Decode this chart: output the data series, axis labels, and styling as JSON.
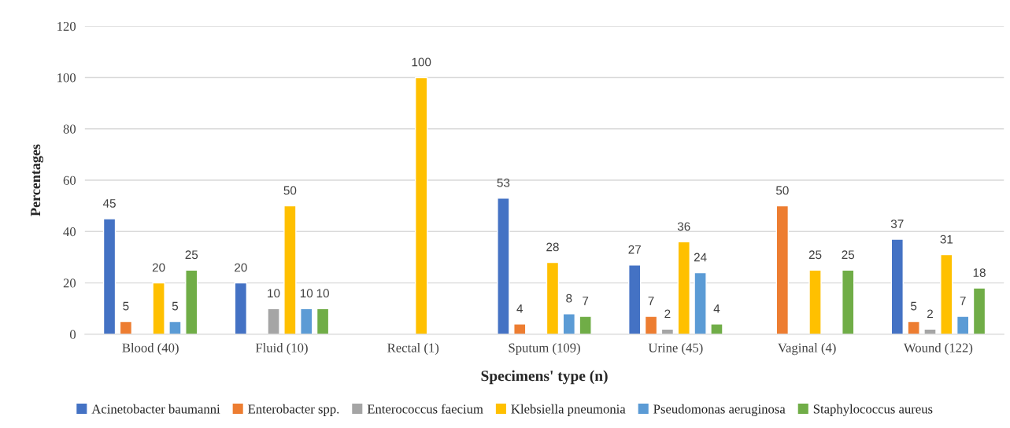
{
  "chart_data": {
    "type": "bar",
    "xlabel": "Specimens' type (n)",
    "ylabel": "Percentages",
    "categories": [
      "Blood (40)",
      "Fluid (10)",
      "Rectal (1)",
      "Sputum (109)",
      "Urine (45)",
      "Vaginal (4)",
      "Wound (122)"
    ],
    "series": [
      {
        "name": "Acinetobacter baumanni",
        "color": "#4472c4",
        "values": [
          45,
          20,
          null,
          53,
          27,
          null,
          37
        ]
      },
      {
        "name": "Enterobacter spp.",
        "color": "#ed7d31",
        "values": [
          5,
          null,
          null,
          4,
          7,
          50,
          5
        ]
      },
      {
        "name": "Enterococcus faecium",
        "color": "#a5a5a5",
        "values": [
          null,
          10,
          null,
          null,
          2,
          null,
          2
        ]
      },
      {
        "name": "Klebsiella pneumonia",
        "color": "#ffc000",
        "values": [
          20,
          50,
          100,
          28,
          36,
          25,
          31
        ]
      },
      {
        "name": "Pseudomonas aeruginosa",
        "color": "#5b9bd5",
        "values": [
          5,
          10,
          null,
          8,
          24,
          null,
          7
        ]
      },
      {
        "name": "Staphylococcus aureus",
        "color": "#70ad47",
        "values": [
          25,
          10,
          null,
          7,
          4,
          25,
          18
        ]
      }
    ],
    "ylim": [
      0,
      120
    ],
    "yticks": [
      0,
      20,
      40,
      60,
      80,
      100,
      120
    ],
    "grid": "y",
    "legend": "bottom",
    "data_labels": true
  }
}
